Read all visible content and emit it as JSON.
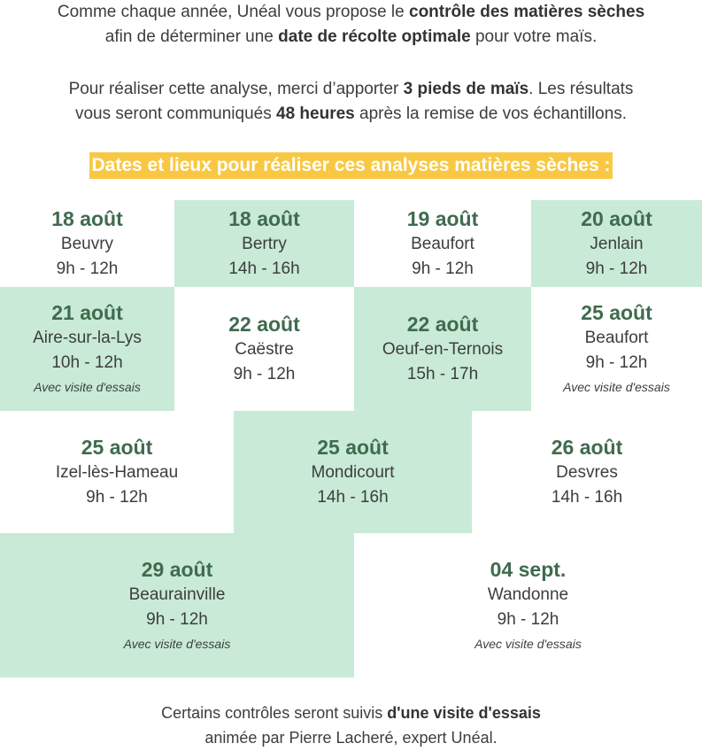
{
  "intro": {
    "p1": {
      "t1": "Comme chaque année, Unéal vous propose le ",
      "b1": "contrôle des matières sèches",
      "t2": "afin de déterminer une ",
      "b2": "date de récolte optimale",
      "t3": " pour votre maïs."
    },
    "p2": {
      "t1": "Pour réaliser cette analyse, merci d’apporter ",
      "b1": "3 pieds de maïs",
      "t2": ". Les résultats",
      "t3": "vous seront communiqués ",
      "b2": "48 heures",
      "t4": " après la remise de vos échantillons."
    }
  },
  "heading": "Dates et lieux pour réaliser ces analyses matières sèches :",
  "sessions": [
    {
      "date": "18 août",
      "place": "Beuvry",
      "hours": "9h - 12h",
      "visit": ""
    },
    {
      "date": "18 août",
      "place": "Bertry",
      "hours": "14h - 16h",
      "visit": ""
    },
    {
      "date": "19 août",
      "place": "Beaufort",
      "hours": "9h - 12h",
      "visit": ""
    },
    {
      "date": "20 août",
      "place": "Jenlain",
      "hours": "9h - 12h",
      "visit": ""
    },
    {
      "date": "21 août",
      "place": "Aire-sur-la-Lys",
      "hours": "10h - 12h",
      "visit": "Avec visite d'essais"
    },
    {
      "date": "22 août",
      "place": "Caëstre",
      "hours": "9h - 12h",
      "visit": ""
    },
    {
      "date": "22 août",
      "place": "Oeuf-en-Ternois",
      "hours": "15h - 17h",
      "visit": ""
    },
    {
      "date": "25 août",
      "place": "Beaufort",
      "hours": "9h - 12h",
      "visit": "Avec visite d'essais"
    },
    {
      "date": "25 août",
      "place": "Izel-lès-Hameau",
      "hours": "9h - 12h",
      "visit": ""
    },
    {
      "date": "25 août",
      "place": "Mondicourt",
      "hours": "14h - 16h",
      "visit": ""
    },
    {
      "date": "26 août",
      "place": "Desvres",
      "hours": "14h - 16h",
      "visit": ""
    },
    {
      "date": "29 août",
      "place": "Beaurainville",
      "hours": "9h - 12h",
      "visit": "Avec visite d'essais"
    },
    {
      "date": "04 sept.",
      "place": "Wandonne",
      "hours": "9h - 12h",
      "visit": "Avec visite d'essais"
    }
  ],
  "outro": {
    "t1": "Certains contrôles seront suivis ",
    "b1": "d'une visite d'essais",
    "t2": "animée par Pierre Lacheré, expert Unéal."
  },
  "colors": {
    "cell_green": "#c8ead6",
    "date_green": "#3f6b4e",
    "heading_bg": "#f8c845",
    "text": "#3d3d3d"
  }
}
